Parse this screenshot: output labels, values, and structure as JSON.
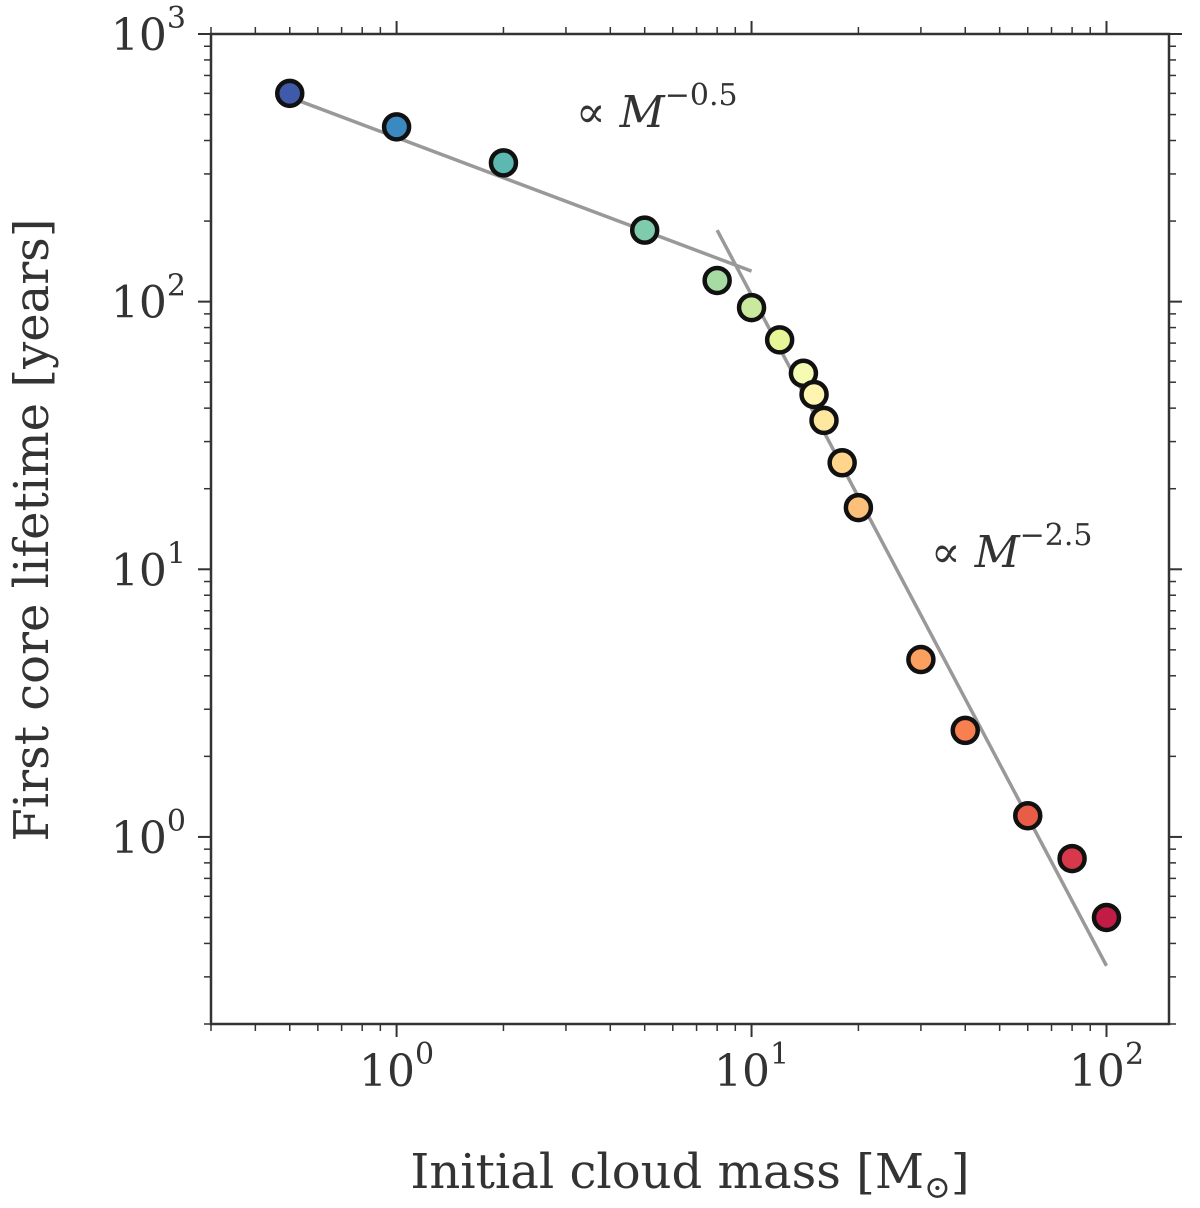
{
  "chart_data": {
    "type": "scatter",
    "xscale": "log",
    "yscale": "log",
    "xlim": [
      0.3,
      150
    ],
    "ylim": [
      0.2,
      1000
    ],
    "xlabel": "Initial cloud mass [M",
    "xlabel_unit_symbol": "⊙",
    "xlabel_end": "]",
    "ylabel": "First core lifetime [years]",
    "x_ticks": [
      {
        "value": 1,
        "base": "10",
        "exp": "0"
      },
      {
        "value": 10,
        "base": "10",
        "exp": "1"
      },
      {
        "value": 100,
        "base": "10",
        "exp": "2"
      }
    ],
    "y_ticks": [
      {
        "value": 1,
        "base": "10",
        "exp": "0"
      },
      {
        "value": 10,
        "base": "10",
        "exp": "1"
      },
      {
        "value": 100,
        "base": "10",
        "exp": "2"
      },
      {
        "value": 1000,
        "base": "10",
        "exp": "3"
      }
    ],
    "points": [
      {
        "x": 0.5,
        "y": 600,
        "color": "#3f5aa8"
      },
      {
        "x": 1,
        "y": 450,
        "color": "#3a8ac1"
      },
      {
        "x": 2,
        "y": 330,
        "color": "#5cb8b0"
      },
      {
        "x": 5,
        "y": 185,
        "color": "#7fccac"
      },
      {
        "x": 8,
        "y": 120,
        "color": "#a6dba4"
      },
      {
        "x": 10,
        "y": 95,
        "color": "#c9e99e"
      },
      {
        "x": 12,
        "y": 72,
        "color": "#e6f598"
      },
      {
        "x": 14,
        "y": 54,
        "color": "#f5fbb2"
      },
      {
        "x": 15,
        "y": 45,
        "color": "#fef5b0"
      },
      {
        "x": 16,
        "y": 36,
        "color": "#fee8a0"
      },
      {
        "x": 18,
        "y": 25,
        "color": "#fed58a"
      },
      {
        "x": 20,
        "y": 17,
        "color": "#fdc07a"
      },
      {
        "x": 30,
        "y": 4.6,
        "color": "#fca05f"
      },
      {
        "x": 40,
        "y": 2.5,
        "color": "#f88050"
      },
      {
        "x": 60,
        "y": 1.2,
        "color": "#e95d47"
      },
      {
        "x": 80,
        "y": 0.83,
        "color": "#d8394a"
      },
      {
        "x": 100,
        "y": 0.5,
        "color": "#c01c45"
      }
    ],
    "fits": [
      {
        "name": "shallow",
        "x1": 0.5,
        "y1": 580,
        "x2": 10,
        "y2": 130,
        "color": "#999999"
      },
      {
        "name": "steep",
        "x1": 8,
        "y1": 185,
        "x2": 100,
        "y2": 0.33,
        "color": "#999999"
      }
    ],
    "annotations": [
      {
        "prefix": "∝ ",
        "var": "M",
        "exp": "−0.5",
        "x": 3.2,
        "y": 450
      },
      {
        "prefix": "∝ ",
        "var": "M",
        "exp": "−2.5",
        "x": 32,
        "y": 10.2
      }
    ]
  }
}
